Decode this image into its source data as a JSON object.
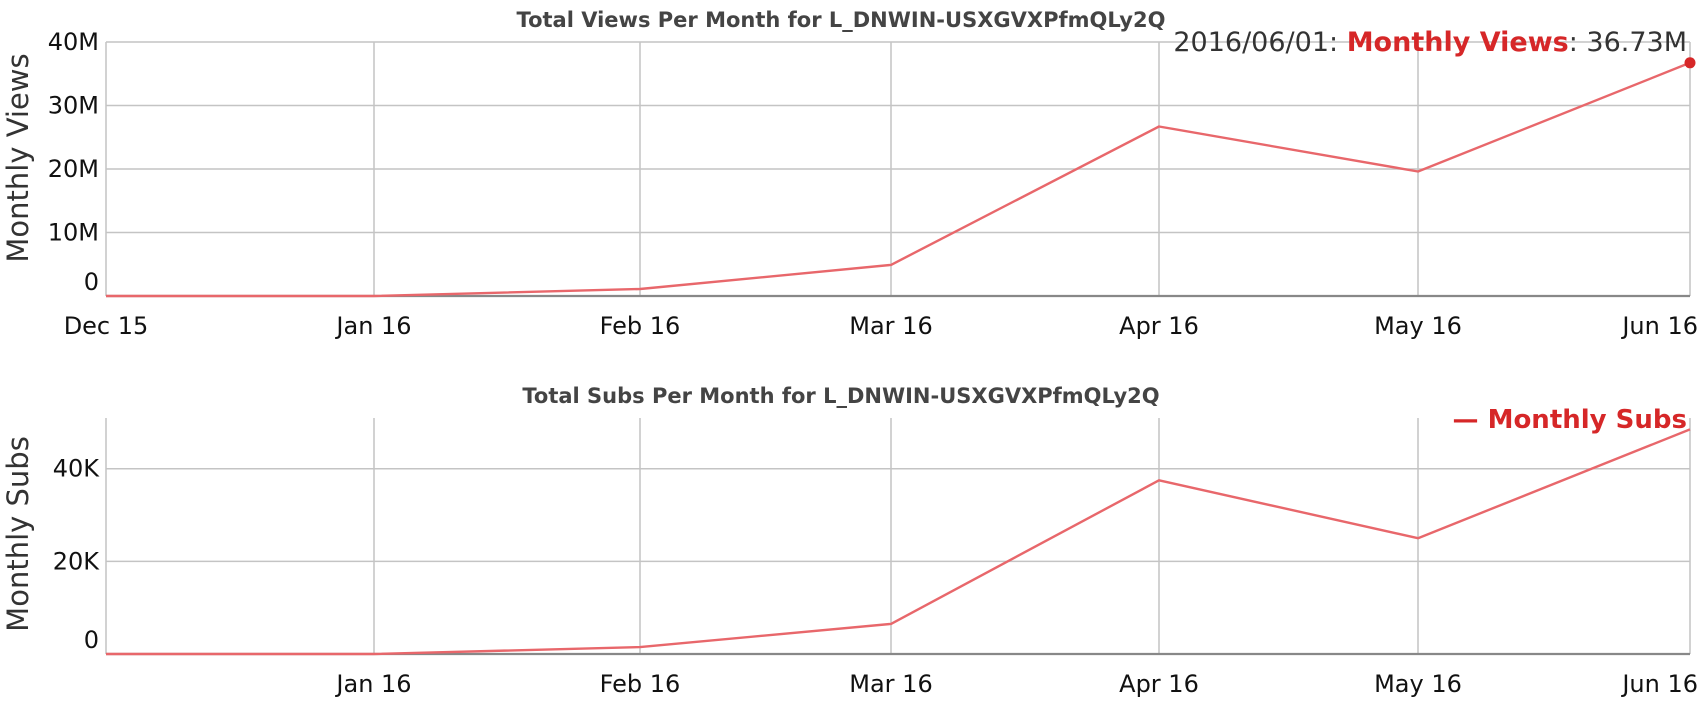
{
  "accent": "#d62728",
  "line_color": "#e8676b",
  "chart_data": [
    {
      "type": "line",
      "title": "Total Views Per Month for L_DNWIN-USXGVXPfmQLy2Q",
      "xlabel": "",
      "ylabel": "Monthly Views",
      "x": [
        "2015-12-01",
        "2016-01-01",
        "2016-02-01",
        "2016-03-01",
        "2016-04-01",
        "2016-05-01",
        "2016-06-01"
      ],
      "x_tick_labels": [
        "Dec 15",
        "Jan 16",
        "Feb 16",
        "Mar 16",
        "Apr 16",
        "May 16",
        "Jun 16"
      ],
      "series": [
        {
          "name": "Monthly Views",
          "values": [
            0,
            0,
            1100000,
            4900000,
            26700000,
            19600000,
            36730000
          ]
        }
      ],
      "ylim": [
        0,
        40000000
      ],
      "y_ticks": [
        0,
        10000000,
        20000000,
        30000000,
        40000000
      ],
      "y_tick_labels": [
        "0",
        "10M",
        "20M",
        "30M",
        "40M"
      ],
      "grid": true,
      "hover": {
        "date": "2016/06/01:",
        "series": "Monthly Views",
        "value": ": 36.73M"
      }
    },
    {
      "type": "line",
      "title": "Total Subs Per Month for L_DNWIN-USXGVXPfmQLy2Q",
      "xlabel": "",
      "ylabel": "Monthly Subs",
      "x": [
        "2015-12-01",
        "2016-01-01",
        "2016-02-01",
        "2016-03-01",
        "2016-04-01",
        "2016-05-01",
        "2016-06-01"
      ],
      "x_tick_labels": [
        "",
        "Jan 16",
        "Feb 16",
        "Mar 16",
        "Apr 16",
        "May 16",
        "Jun 16"
      ],
      "series": [
        {
          "name": "Monthly Subs",
          "values": [
            0,
            0,
            1500,
            6500,
            37500,
            25000,
            48500
          ]
        }
      ],
      "ylim": [
        0,
        57000
      ],
      "y_ticks": [
        0,
        20000,
        40000
      ],
      "y_tick_labels": [
        "0",
        "20K",
        "40K"
      ],
      "grid": true,
      "legend": {
        "label": "— Monthly Subs",
        "position": "top-right"
      }
    }
  ]
}
